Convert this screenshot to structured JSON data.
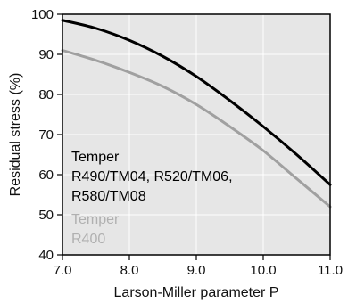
{
  "chart_data": {
    "type": "line",
    "title": "",
    "xlabel": "Larson-Miller parameter P",
    "ylabel": "Residual stress (%)",
    "xlim": [
      7.0,
      11.0
    ],
    "ylim": [
      40,
      100
    ],
    "x_ticks": [
      "7.0",
      "8.0",
      "9.0",
      "10.0",
      "11.0"
    ],
    "y_ticks": [
      "40",
      "50",
      "60",
      "70",
      "80",
      "90",
      "100"
    ],
    "x_tick_values": [
      7.0,
      8.0,
      9.0,
      10.0,
      11.0
    ],
    "y_tick_values": [
      40,
      50,
      60,
      70,
      80,
      90,
      100
    ],
    "grid": true,
    "background_color": "#e6e6e6",
    "series": [
      {
        "color": "#000000",
        "x": [
          7.0,
          7.5,
          8.0,
          8.5,
          9.0,
          9.5,
          10.0,
          10.5,
          11.0
        ],
        "y": [
          98.5,
          96.5,
          93.5,
          89.5,
          84.5,
          78.5,
          72.0,
          65.0,
          57.5
        ]
      },
      {
        "color": "#a0a0a0",
        "x": [
          7.0,
          7.5,
          8.0,
          8.5,
          9.0,
          9.5,
          10.0,
          10.5,
          11.0
        ],
        "y": [
          91.0,
          88.5,
          85.5,
          82.0,
          77.5,
          72.0,
          66.0,
          59.0,
          52.0
        ]
      }
    ],
    "annotations": {
      "black_label": [
        "Temper",
        "R490/TM04,  R520/TM06,",
        "R580/TM08"
      ],
      "black_color": "#000000",
      "gray_label": [
        "Temper",
        "R400"
      ],
      "gray_color": "#b0b0b0"
    }
  }
}
